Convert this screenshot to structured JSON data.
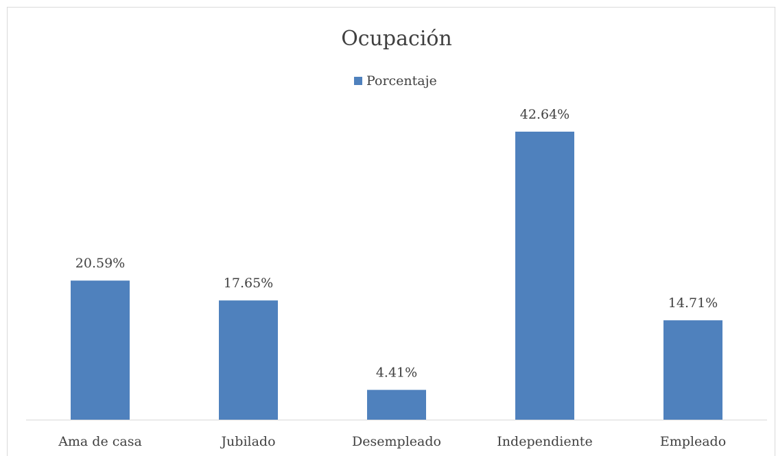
{
  "chart_data": {
    "type": "bar",
    "title": "Ocupación",
    "categories": [
      "Ama de casa",
      "Jubilado",
      "Desempleado",
      "Independiente",
      "Empleado"
    ],
    "series": [
      {
        "name": "Porcentaje",
        "color": "#4f81bd",
        "values": [
          20.59,
          17.65,
          4.41,
          42.64,
          14.71
        ],
        "value_labels": [
          "20.59%",
          "17.65%",
          "4.41%",
          "42.64%",
          "14.71%"
        ]
      }
    ],
    "legend": "top",
    "grid": false
  }
}
